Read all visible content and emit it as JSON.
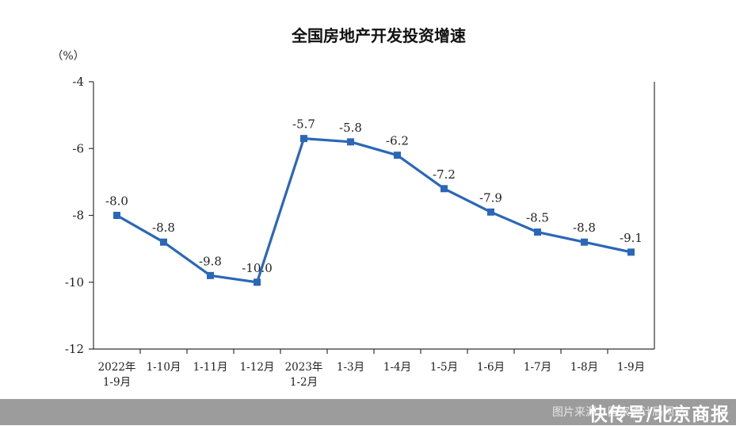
{
  "chart_data": {
    "type": "line",
    "title": "全国房地产开发投资增速",
    "unit_label": "（%）",
    "xlabel": "",
    "ylabel": "",
    "ylim": [
      -12,
      -4
    ],
    "yticks": [
      -4,
      -6,
      -8,
      -10,
      -12
    ],
    "grid": false,
    "categories": [
      [
        "2022年",
        "1-9月"
      ],
      [
        "1-10月"
      ],
      [
        "1-11月"
      ],
      [
        "1-12月"
      ],
      [
        "2023年",
        "1-2月"
      ],
      [
        "1-3月"
      ],
      [
        "1-4月"
      ],
      [
        "1-5月"
      ],
      [
        "1-6月"
      ],
      [
        "1-7月"
      ],
      [
        "1-8月"
      ],
      [
        "1-9月"
      ]
    ],
    "values": [
      -8.0,
      -8.8,
      -9.8,
      -10.0,
      -5.7,
      -5.8,
      -6.2,
      -7.2,
      -7.9,
      -8.5,
      -8.8,
      -9.1
    ],
    "data_labels": [
      "-8.0",
      "-8.8",
      "-9.8",
      "-10.0",
      "-5.7",
      "-5.8",
      "-6.2",
      "-7.2",
      "-7.9",
      "-8.5",
      "-8.8",
      "-9.1"
    ],
    "color": "#2a67b8"
  },
  "watermark": {
    "small": "图片来源：国家统计局网站",
    "big": "快传号/北京商报"
  }
}
